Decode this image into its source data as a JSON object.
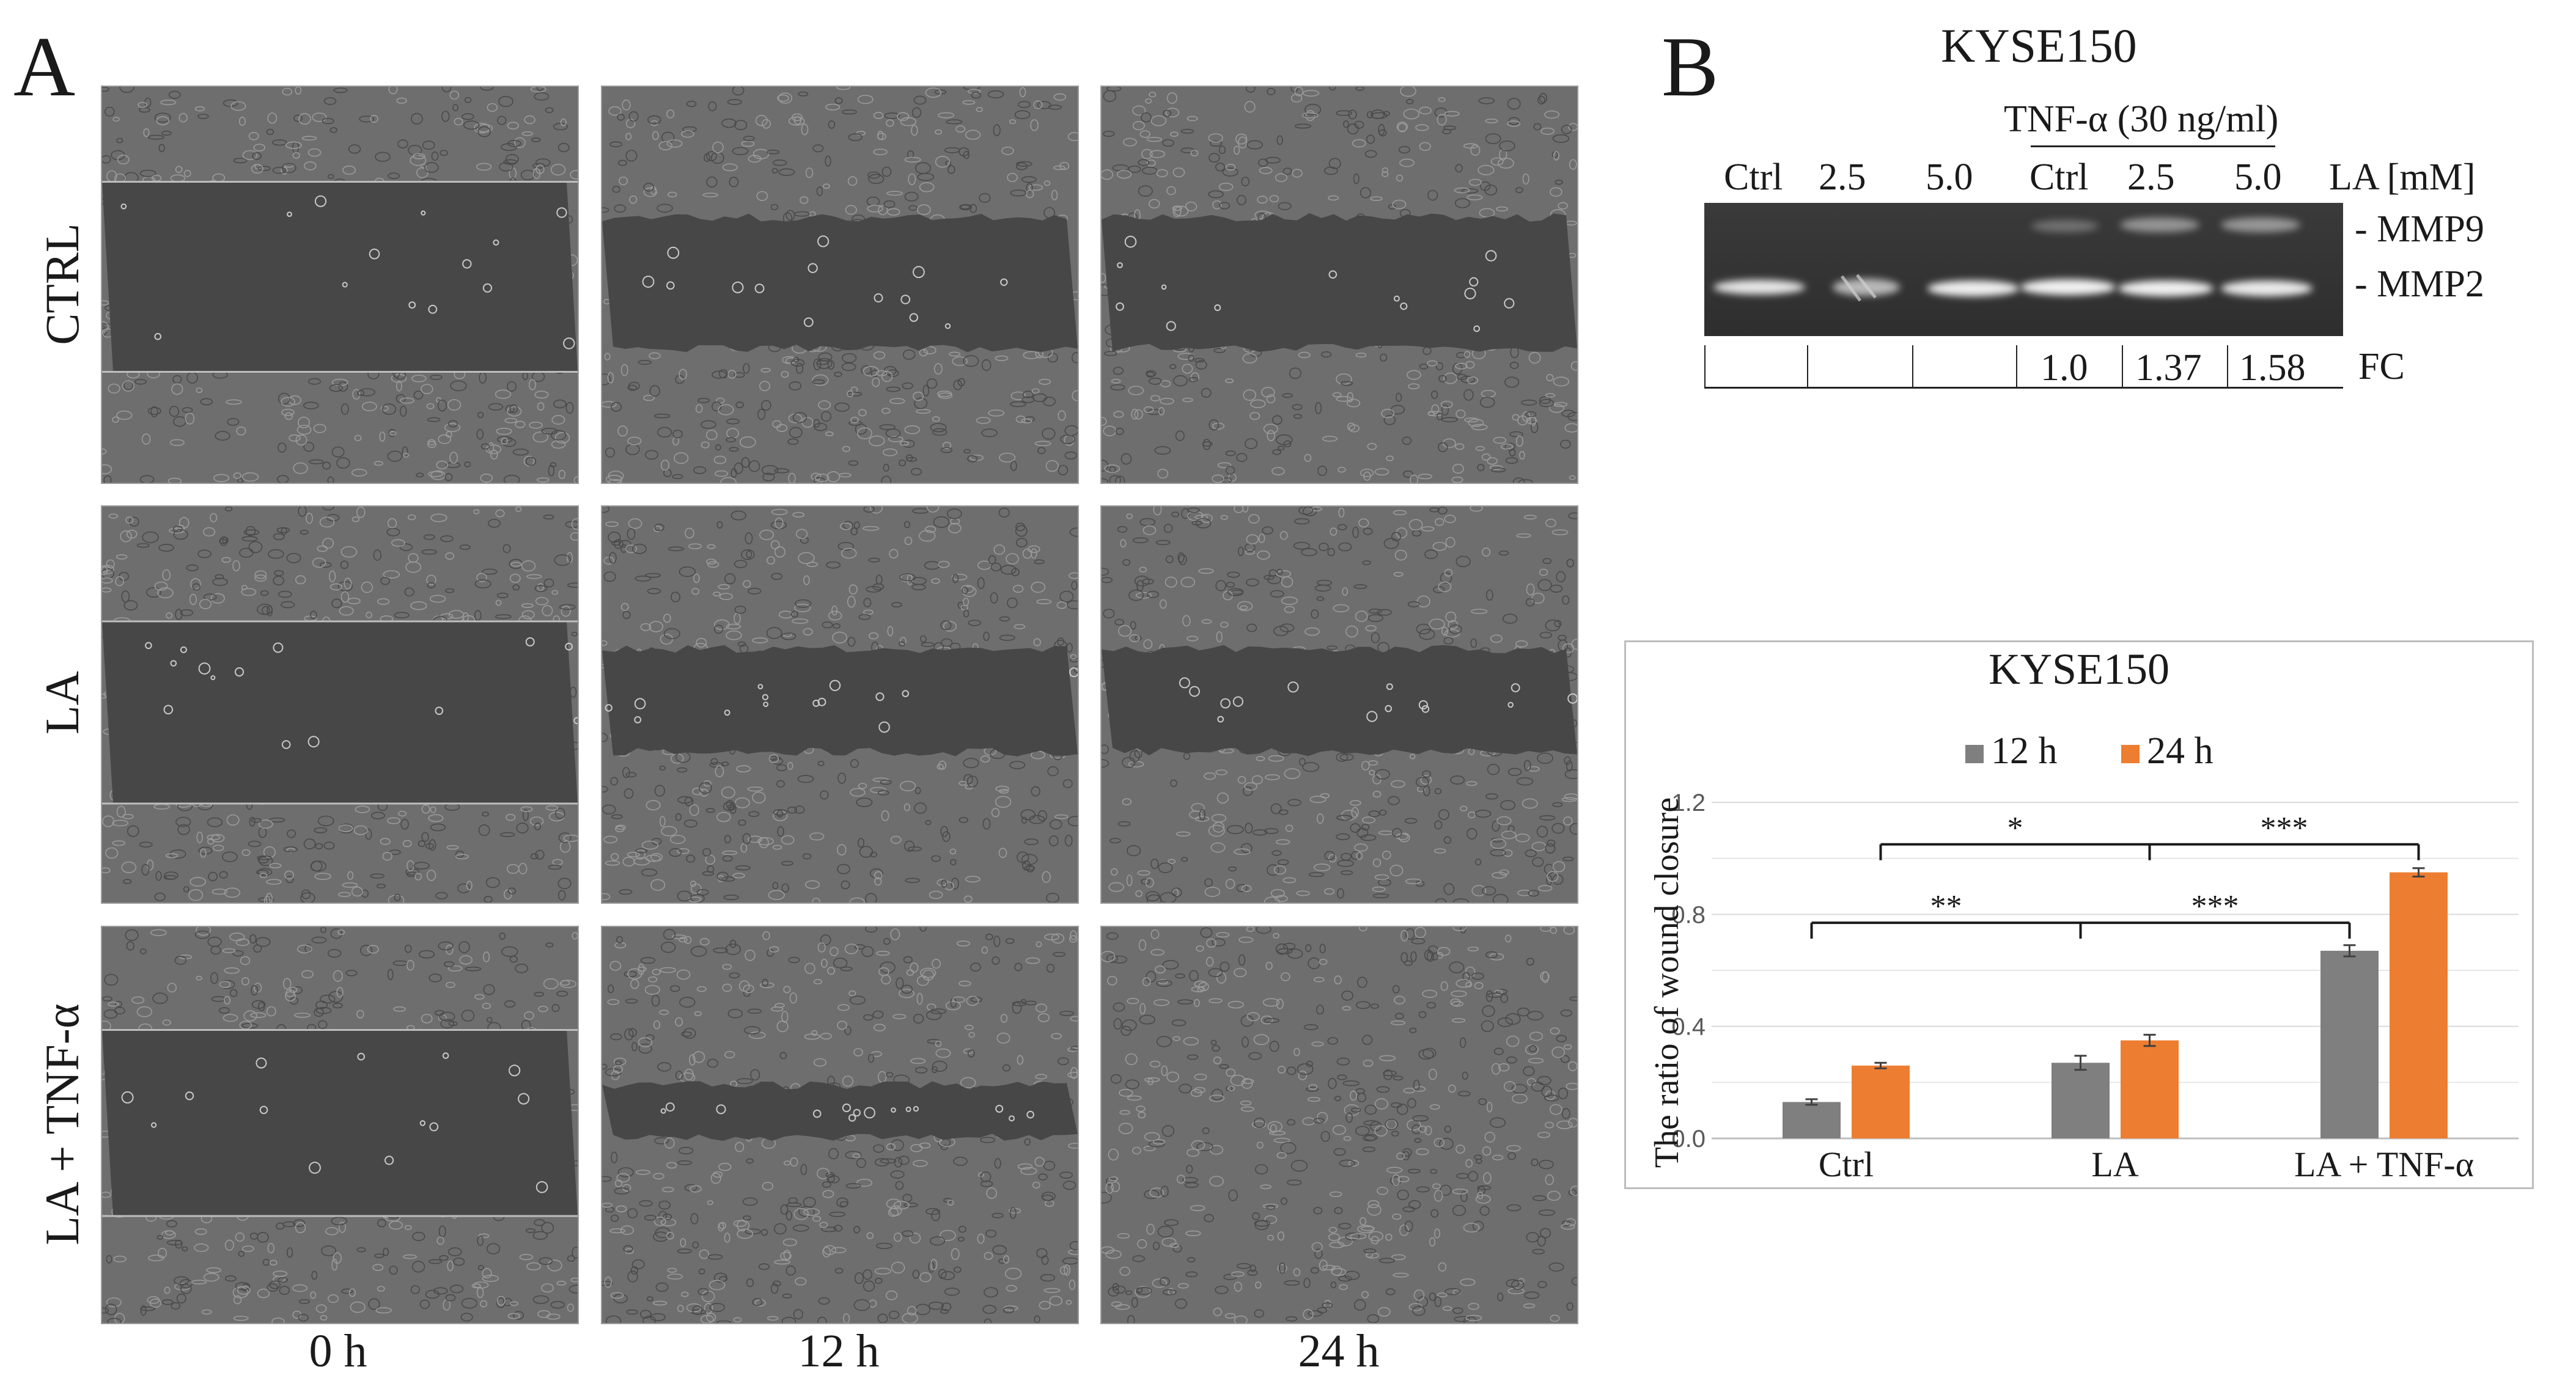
{
  "panel_a": {
    "letter": "A",
    "row_labels": [
      "CTRL",
      "LA",
      "LA + TNF-α"
    ],
    "time_labels": [
      "0 h",
      "12 h",
      "24 h"
    ]
  },
  "panel_b": {
    "letter": "B",
    "gel": {
      "title": "KYSE150",
      "treatment_label": "TNF-α (30 ng/ml)",
      "lanes": [
        "Ctrl",
        "2.5",
        "5.0",
        "Ctrl",
        "2.5",
        "5.0"
      ],
      "lane_axis_label": "LA [mM]",
      "bands": [
        "- MMP9",
        "- MMP2"
      ],
      "fc_label": "FC",
      "fc_values": [
        "",
        "",
        "",
        "1.0",
        "1.37",
        "1.58"
      ]
    }
  },
  "chart_data": {
    "type": "bar",
    "title": "KYSE150",
    "ylabel": "The ratio of wound closure",
    "xlabel": "",
    "categories": [
      "Ctrl",
      "LA",
      "LA + TNF-α"
    ],
    "series": [
      {
        "name": "12 h",
        "values": [
          0.13,
          0.27,
          0.67
        ],
        "errors": [
          0.01,
          0.025,
          0.02
        ],
        "color": "#7f7f7f"
      },
      {
        "name": "24 h",
        "values": [
          0.26,
          0.35,
          0.95
        ],
        "errors": [
          0.01,
          0.02,
          0.015
        ],
        "color": "#ed7d31"
      }
    ],
    "ylim": [
      0,
      1.2
    ],
    "yticks": [
      "0.0",
      "0.4",
      "0.8",
      "1.2"
    ],
    "grid": true,
    "legend_position": "top",
    "significance": [
      {
        "label": "*",
        "from": "Ctrl",
        "to": "LA + TNF-α",
        "series": "24 h"
      },
      {
        "label": "***",
        "from": "LA",
        "to": "LA + TNF-α",
        "series": "24 h"
      },
      {
        "label": "**",
        "from": "Ctrl",
        "to": "LA + TNF-α",
        "series": "12 h"
      },
      {
        "label": "***",
        "from": "LA",
        "to": "LA + TNF-α",
        "series": "12 h"
      }
    ]
  }
}
